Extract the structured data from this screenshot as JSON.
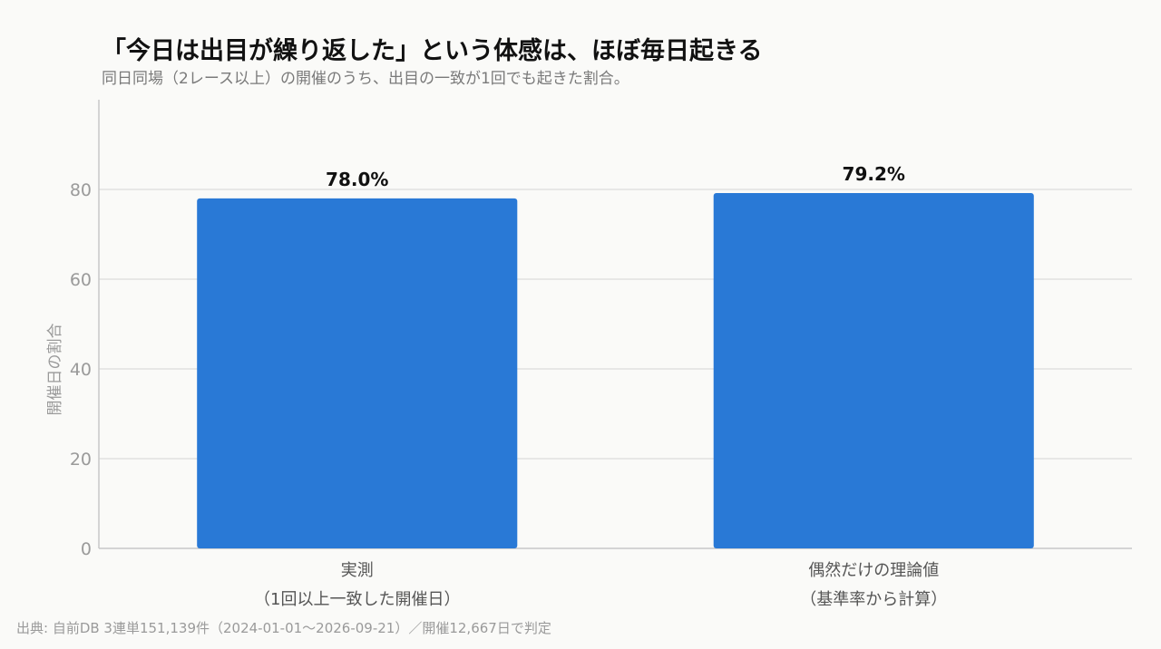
{
  "title": "「今日は出目が繰り返した」という体感は、ほぼ毎日起きる",
  "subtitle": "同日同場（2レース以上）の開催のうち、出目の一致が1回でも起きた割合。",
  "source": "出典: 自前DB 3連単151,139件（2024-01-01〜2026-09-21）／開催12,667日で判定",
  "chart_data": {
    "type": "bar",
    "categories": [
      [
        "実測",
        "（1回以上一致した開催日）"
      ],
      [
        "偶然だけの理論値",
        "（基準率から計算）"
      ]
    ],
    "values": [
      78.0,
      79.2
    ],
    "value_labels": [
      "78.0%",
      "79.2%"
    ],
    "ylabel": "開催日の割合",
    "ylim": [
      0,
      100
    ],
    "yticks": [
      0,
      20,
      40,
      60,
      80
    ],
    "grid": true,
    "bar_color": "#2979d6"
  }
}
